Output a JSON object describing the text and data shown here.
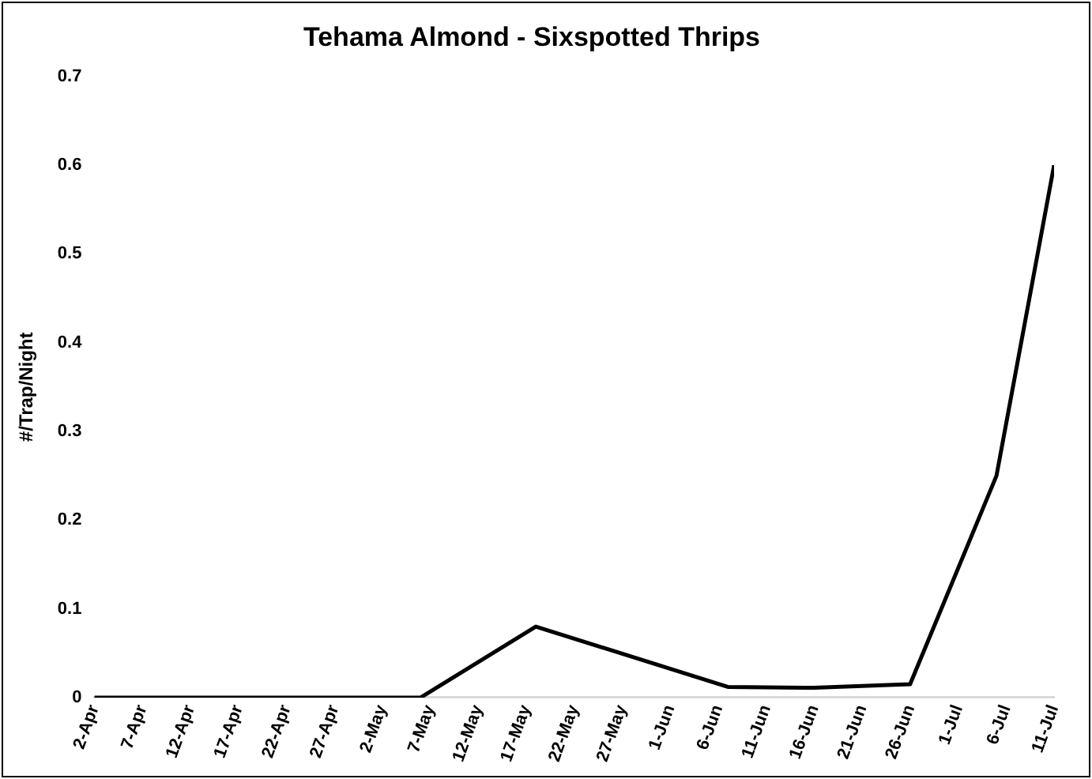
{
  "chart_data": {
    "type": "line",
    "title": "Tehama Almond - Sixspotted Thrips",
    "ylabel": "#/Trap/Night",
    "x": [
      "--04-02",
      "--05-06",
      "--05-18",
      "--06-07",
      "--06-16",
      "--06-26",
      "--07-05",
      "--07-11"
    ],
    "series": [
      {
        "color": "#000000",
        "values": [
          0,
          0,
          0.08,
          0.012,
          0.011,
          0.015,
          0.25,
          0.6
        ]
      }
    ],
    "xlim": [
      "--04-02",
      "--07-11"
    ],
    "xticks": [
      {
        "value": "--04-02",
        "label": "2-Apr"
      },
      {
        "value": "--04-07",
        "label": "7-Apr"
      },
      {
        "value": "--04-12",
        "label": "12-Apr"
      },
      {
        "value": "--04-17",
        "label": "17-Apr"
      },
      {
        "value": "--04-22",
        "label": "22-Apr"
      },
      {
        "value": "--04-27",
        "label": "27-Apr"
      },
      {
        "value": "--05-02",
        "label": "2-May"
      },
      {
        "value": "--05-07",
        "label": "7-May"
      },
      {
        "value": "--05-12",
        "label": "12-May"
      },
      {
        "value": "--05-17",
        "label": "17-May"
      },
      {
        "value": "--05-22",
        "label": "22-May"
      },
      {
        "value": "--05-27",
        "label": "27-May"
      },
      {
        "value": "--06-01",
        "label": "1-Jun"
      },
      {
        "value": "--06-06",
        "label": "6-Jun"
      },
      {
        "value": "--06-11",
        "label": "11-Jun"
      },
      {
        "value": "--06-16",
        "label": "16-Jun"
      },
      {
        "value": "--06-21",
        "label": "21-Jun"
      },
      {
        "value": "--06-26",
        "label": "26-Jun"
      },
      {
        "value": "--07-01",
        "label": "1-Jul"
      },
      {
        "value": "--07-06",
        "label": "6-Jul"
      },
      {
        "value": "--07-11",
        "label": "11-Jul"
      }
    ],
    "ylim": [
      0,
      0.7
    ],
    "yticks": [
      0,
      0.1,
      0.2,
      0.3,
      0.4,
      0.5,
      0.6,
      0.7
    ],
    "grid": false,
    "legend": false,
    "marker": "none",
    "line_style": "solid"
  }
}
